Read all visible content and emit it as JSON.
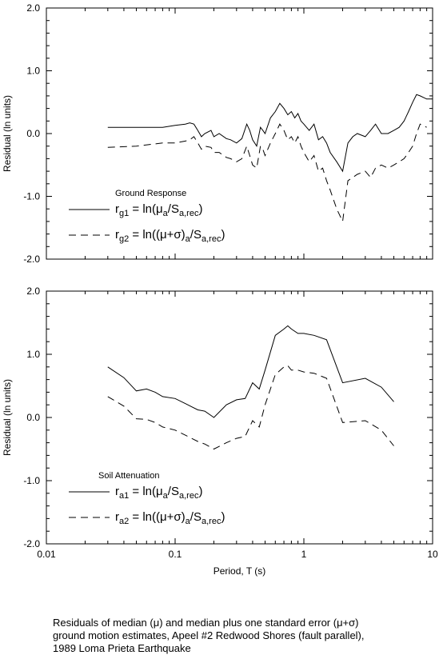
{
  "caption": {
    "line1": "Residuals of median (μ) and median plus one standard error (μ+σ)",
    "line2": "ground motion estimates, Apeel #2 Redwood Shores (fault parallel),",
    "line3": "1989 Loma Prieta Earthquake"
  },
  "chart_data": [
    {
      "type": "line",
      "panel": "top",
      "title": "Ground Response",
      "xlabel": "",
      "ylabel": "Residual (ln units)",
      "xscale": "log",
      "xlim": [
        0.01,
        10
      ],
      "ylim": [
        -2.0,
        2.0
      ],
      "yticks": [
        "2.0",
        "1.0",
        "0.0",
        "-1.0",
        "-2.0"
      ],
      "xticks": [],
      "grid": false,
      "legend_placement": "lower-left",
      "series": [
        {
          "name_parts": [
            "r",
            "g1",
            " = ln(μ",
            "a",
            "/S",
            "a,rec",
            ")"
          ],
          "style": "solid",
          "x": [
            0.03,
            0.05,
            0.08,
            0.1,
            0.12,
            0.13,
            0.14,
            0.15,
            0.16,
            0.17,
            0.19,
            0.2,
            0.22,
            0.25,
            0.27,
            0.3,
            0.33,
            0.36,
            0.38,
            0.4,
            0.43,
            0.46,
            0.48,
            0.5,
            0.55,
            0.6,
            0.65,
            0.7,
            0.75,
            0.8,
            0.85,
            0.9,
            0.95,
            1.0,
            1.1,
            1.2,
            1.3,
            1.4,
            1.5,
            1.6,
            1.8,
            2.0,
            2.2,
            2.4,
            2.6,
            3.0,
            3.3,
            3.6,
            4.0,
            4.5,
            5.0,
            5.5,
            6.0,
            6.5,
            7.0,
            7.5,
            8.0,
            9.0,
            10.0
          ],
          "y": [
            0.1,
            0.1,
            0.1,
            0.13,
            0.15,
            0.17,
            0.15,
            0.05,
            -0.05,
            0.0,
            0.05,
            -0.05,
            0.0,
            -0.08,
            -0.1,
            -0.15,
            -0.08,
            0.15,
            0.05,
            -0.1,
            -0.2,
            0.1,
            0.05,
            0.0,
            0.25,
            0.35,
            0.48,
            0.4,
            0.3,
            0.35,
            0.25,
            0.32,
            0.2,
            0.15,
            0.05,
            0.15,
            -0.1,
            -0.05,
            -0.15,
            -0.3,
            -0.45,
            -0.6,
            -0.15,
            -0.05,
            0.0,
            -0.05,
            0.05,
            0.15,
            0.0,
            0.0,
            0.05,
            0.1,
            0.2,
            0.35,
            0.5,
            0.62,
            0.6,
            0.55,
            0.55
          ]
        },
        {
          "name_parts": [
            "r",
            "g2",
            " = ln((μ+σ)",
            "a",
            "/S",
            "a,rec",
            ")"
          ],
          "style": "dashed",
          "x": [
            0.03,
            0.05,
            0.08,
            0.1,
            0.12,
            0.13,
            0.14,
            0.15,
            0.16,
            0.17,
            0.19,
            0.2,
            0.22,
            0.25,
            0.27,
            0.3,
            0.33,
            0.36,
            0.38,
            0.4,
            0.43,
            0.46,
            0.48,
            0.5,
            0.55,
            0.6,
            0.65,
            0.7,
            0.75,
            0.8,
            0.85,
            0.9,
            0.95,
            1.0,
            1.1,
            1.2,
            1.3,
            1.4,
            1.5,
            1.6,
            1.8,
            2.0,
            2.2,
            2.4,
            2.6,
            3.0,
            3.3,
            3.6,
            4.0,
            4.5,
            5.0,
            5.5,
            6.0,
            6.5,
            7.0,
            7.5,
            8.0,
            9.0
          ],
          "y": [
            -0.22,
            -0.2,
            -0.15,
            -0.15,
            -0.12,
            -0.1,
            -0.05,
            -0.15,
            -0.25,
            -0.2,
            -0.22,
            -0.3,
            -0.3,
            -0.38,
            -0.4,
            -0.45,
            -0.4,
            -0.2,
            -0.35,
            -0.5,
            -0.55,
            -0.2,
            -0.25,
            -0.35,
            -0.15,
            0.0,
            0.15,
            0.05,
            -0.1,
            -0.05,
            -0.15,
            -0.05,
            -0.2,
            -0.3,
            -0.45,
            -0.35,
            -0.6,
            -0.55,
            -0.75,
            -0.9,
            -1.2,
            -1.4,
            -0.75,
            -0.7,
            -0.65,
            -0.6,
            -0.7,
            -0.55,
            -0.5,
            -0.55,
            -0.5,
            -0.45,
            -0.4,
            -0.3,
            -0.2,
            0.0,
            0.15,
            0.1
          ]
        }
      ]
    },
    {
      "type": "line",
      "panel": "bottom",
      "title": "Soil Attenuation",
      "xlabel": "Period, T (s)",
      "ylabel": "Residual (ln units)",
      "xscale": "log",
      "xlim": [
        0.01,
        10
      ],
      "ylim": [
        -2.0,
        2.0
      ],
      "yticks": [
        "2.0",
        "1.0",
        "0.0",
        "-1.0",
        "-2.0"
      ],
      "xticks": [
        "0.01",
        "0.1",
        "1",
        "10"
      ],
      "grid": false,
      "legend_placement": "lower-left",
      "series": [
        {
          "name_parts": [
            "r",
            "a1",
            " = ln(μ",
            "a",
            "/S",
            "a,rec",
            ")"
          ],
          "style": "solid",
          "x": [
            0.03,
            0.04,
            0.05,
            0.06,
            0.07,
            0.08,
            0.1,
            0.12,
            0.15,
            0.17,
            0.2,
            0.25,
            0.3,
            0.35,
            0.4,
            0.45,
            0.5,
            0.6,
            0.7,
            0.75,
            0.8,
            0.9,
            1.0,
            1.2,
            1.5,
            2.0,
            3.0,
            4.0,
            5.0
          ],
          "y": [
            0.8,
            0.63,
            0.42,
            0.45,
            0.4,
            0.33,
            0.3,
            0.22,
            0.12,
            0.1,
            0.0,
            0.2,
            0.28,
            0.3,
            0.55,
            0.45,
            0.75,
            1.3,
            1.4,
            1.45,
            1.4,
            1.33,
            1.33,
            1.3,
            1.23,
            0.55,
            0.62,
            0.48,
            0.25
          ]
        },
        {
          "name_parts": [
            "r",
            "a2",
            " = ln((μ+σ)",
            "a",
            "/S",
            "a,rec",
            ")"
          ],
          "style": "dashed",
          "x": [
            0.03,
            0.04,
            0.05,
            0.06,
            0.07,
            0.08,
            0.1,
            0.12,
            0.15,
            0.17,
            0.2,
            0.25,
            0.3,
            0.35,
            0.4,
            0.45,
            0.5,
            0.6,
            0.7,
            0.75,
            0.8,
            0.9,
            1.0,
            1.2,
            1.5,
            2.0,
            3.0,
            4.0,
            5.0
          ],
          "y": [
            0.33,
            0.18,
            -0.02,
            -0.03,
            -0.08,
            -0.15,
            -0.2,
            -0.28,
            -0.38,
            -0.42,
            -0.5,
            -0.4,
            -0.33,
            -0.3,
            -0.05,
            -0.15,
            0.2,
            0.68,
            0.8,
            0.82,
            0.75,
            0.75,
            0.72,
            0.7,
            0.62,
            -0.08,
            -0.05,
            -0.2,
            -0.45
          ]
        }
      ]
    }
  ]
}
